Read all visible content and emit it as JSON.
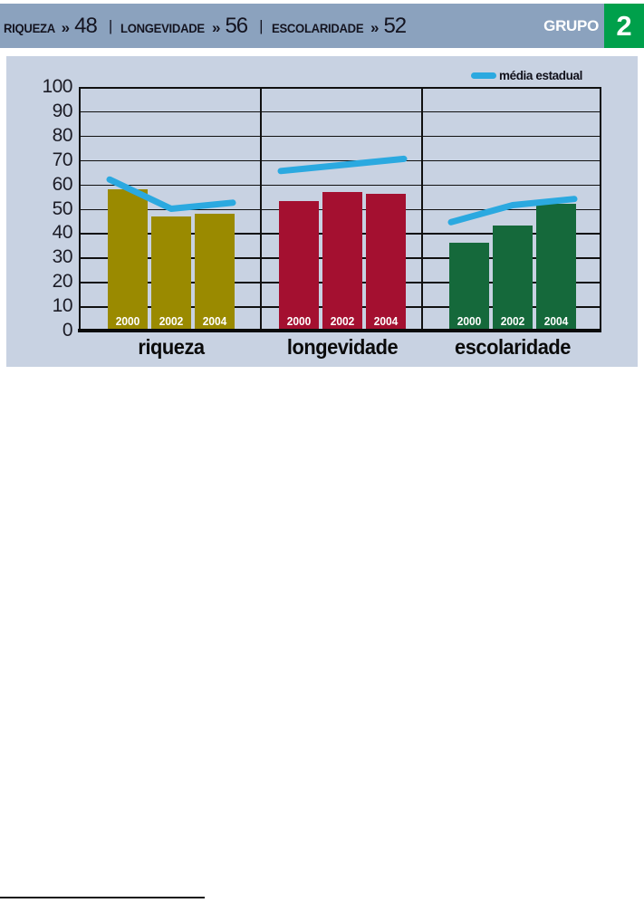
{
  "header": {
    "stats": [
      {
        "label": "RIQUEZA",
        "value": "48"
      },
      {
        "label": "LONGEVIDADE",
        "value": "56"
      },
      {
        "label": "ESCOLARIDADE",
        "value": "52"
      }
    ],
    "chevron": "»",
    "divider": "|",
    "group_label": "GRUPO",
    "group_number": "2",
    "group_box_color": "#00a04b",
    "band_color": "#8ba2be"
  },
  "legend": {
    "label": "média estadual",
    "line_color": "#2ba9e0"
  },
  "chart_data": {
    "type": "bar",
    "categories": [
      "riqueza",
      "longevidade",
      "escolaridade"
    ],
    "years": [
      "2000",
      "2002",
      "2004"
    ],
    "series": [
      {
        "name": "riqueza",
        "color": "#9a8a00",
        "values": [
          58,
          47,
          48
        ]
      },
      {
        "name": "longevidade",
        "color": "#a41030",
        "values": [
          53,
          57,
          56
        ]
      },
      {
        "name": "escolaridade",
        "color": "#15693b",
        "values": [
          36,
          43,
          52
        ]
      }
    ],
    "line_series": {
      "name": "média estadual",
      "color": "#2ba9e0",
      "values_by_group": [
        [
          62,
          50,
          52.5
        ],
        [
          65.5,
          68,
          70.5
        ],
        [
          44.5,
          51.5,
          54
        ]
      ]
    },
    "ylabel": "",
    "xlabel": "",
    "ylim": [
      0,
      100
    ],
    "ytick_step": 10,
    "grid": "on",
    "legend_position": "top-right",
    "panel_bg": "#c8d2e2"
  }
}
